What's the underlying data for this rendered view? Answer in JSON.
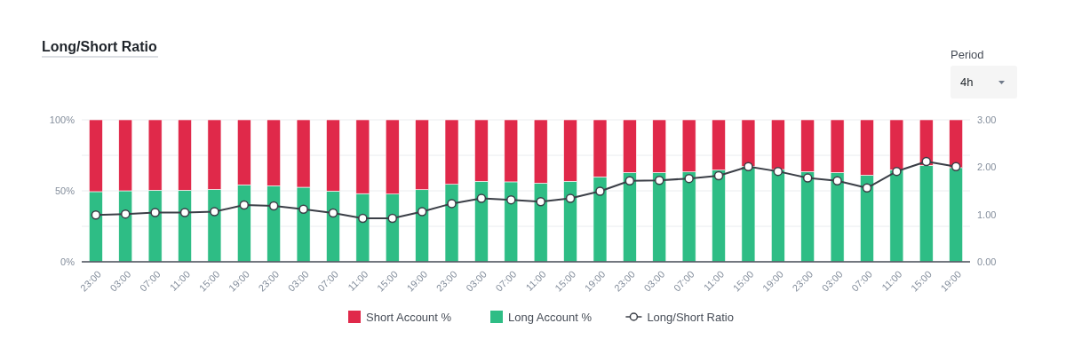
{
  "chart_data": {
    "type": "bar",
    "title": "Long/Short Ratio",
    "stacked": true,
    "categories": [
      "23:00",
      "03:00",
      "07:00",
      "11:00",
      "15:00",
      "19:00",
      "23:00",
      "03:00",
      "07:00",
      "11:00",
      "15:00",
      "19:00",
      "23:00",
      "03:00",
      "07:00",
      "11:00",
      "15:00",
      "19:00",
      "23:00",
      "03:00",
      "07:00",
      "11:00",
      "15:00",
      "19:00",
      "23:00",
      "03:00",
      "07:00",
      "11:00",
      "15:00",
      "19:00"
    ],
    "series": [
      {
        "name": "Long Account %",
        "color": "#2ebd85",
        "values": [
          49.4,
          50,
          50.4,
          50.4,
          51,
          54.2,
          53.5,
          52.5,
          49.8,
          48,
          47.7,
          50.8,
          54.6,
          56.7,
          56.3,
          55.4,
          56.7,
          59.8,
          62.9,
          62.9,
          63.3,
          64.6,
          67.3,
          65,
          63.5,
          62.9,
          61,
          64.8,
          67.9,
          66.3
        ]
      },
      {
        "name": "Short Account %",
        "color": "#e0294a",
        "values": [
          50.6,
          50,
          49.6,
          49.6,
          49,
          45.8,
          46.5,
          47.5,
          50.2,
          52,
          52.3,
          49.2,
          45.4,
          43.3,
          43.7,
          44.6,
          43.3,
          40.2,
          37.1,
          37.1,
          36.7,
          35.4,
          32.7,
          35,
          36.5,
          37.1,
          39,
          35.2,
          32.1,
          33.7
        ]
      },
      {
        "name": "Long/Short Ratio",
        "type": "line",
        "axis": "y2",
        "color": "#3b3f47",
        "marker": "circle",
        "values": [
          0.99,
          1.01,
          1.04,
          1.04,
          1.06,
          1.2,
          1.18,
          1.11,
          1.03,
          0.92,
          0.92,
          1.06,
          1.23,
          1.34,
          1.31,
          1.27,
          1.34,
          1.49,
          1.71,
          1.72,
          1.76,
          1.82,
          2.01,
          1.91,
          1.77,
          1.71,
          1.56,
          1.91,
          2.12,
          2.01
        ]
      }
    ],
    "ylim": [
      0,
      100
    ],
    "yticks": [
      {
        "value": 0,
        "label": "0%"
      },
      {
        "value": 25,
        "label": null
      },
      {
        "value": 50,
        "label": "50%"
      },
      {
        "value": 75,
        "label": null
      },
      {
        "value": 100,
        "label": "100%"
      }
    ],
    "y2lim": [
      0,
      3
    ],
    "y2ticks": [
      {
        "value": 0,
        "label": "0.00"
      },
      {
        "value": 1,
        "label": "1.00"
      },
      {
        "value": 2,
        "label": "2.00"
      },
      {
        "value": 3,
        "label": "3.00"
      }
    ],
    "grid": "y",
    "legend": "bottom",
    "annotations": [
      "Period",
      "4h"
    ]
  }
}
